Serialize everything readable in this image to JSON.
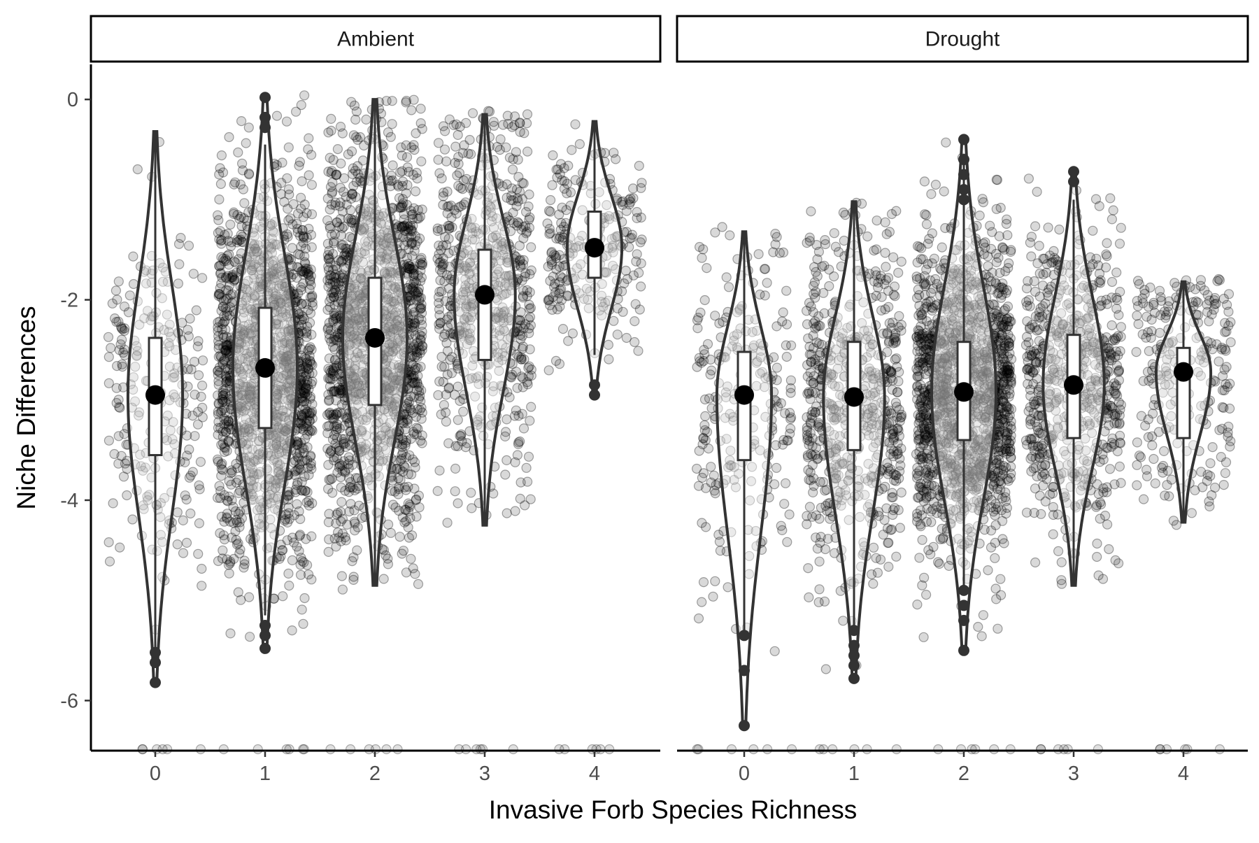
{
  "chart_data": {
    "type": "violin",
    "xlabel": "Invasive Forb Species Richness",
    "ylabel": "Niche Differences",
    "ylim": [
      -6.5,
      0.35
    ],
    "yticks": [
      0,
      -2,
      -4,
      -6
    ],
    "ytick_labels": [
      "0",
      "-2",
      "-4",
      "-6"
    ],
    "categories": [
      "0",
      "1",
      "2",
      "3",
      "4"
    ],
    "grid": false,
    "legend": "none",
    "colors": {
      "violin_outline": "#333333",
      "points": "#000000",
      "mean_marker": "#000000",
      "box_fill": "#ffffff"
    },
    "panels": [
      {
        "facet": "Ambient",
        "groups": [
          {
            "x": "0",
            "density": "low",
            "ymin": -5.82,
            "ymax": -0.32,
            "q1": -3.55,
            "median": -2.95,
            "q3": -2.38,
            "whisker_lo": -5.5,
            "whisker_hi": -0.32,
            "mean": -2.95,
            "outliers": [
              -5.52,
              -5.62,
              -5.82
            ]
          },
          {
            "x": "1",
            "density": "high",
            "ymin": -5.48,
            "ymax": 0.02,
            "q1": -3.28,
            "median": -2.68,
            "q3": -2.08,
            "whisker_lo": -5.15,
            "whisker_hi": -0.45,
            "mean": -2.68,
            "outliers": [
              0.02,
              -0.18,
              -0.28,
              -5.25,
              -5.35,
              -5.48
            ]
          },
          {
            "x": "2",
            "density": "high",
            "ymin": -4.85,
            "ymax": 0.0,
            "q1": -3.05,
            "median": -2.38,
            "q3": -1.78,
            "whisker_lo": -4.85,
            "whisker_hi": 0.0,
            "mean": -2.38,
            "outliers": []
          },
          {
            "x": "3",
            "density": "medium",
            "ymin": -4.25,
            "ymax": -0.15,
            "q1": -2.6,
            "median": -1.95,
            "q3": -1.5,
            "whisker_lo": -4.25,
            "whisker_hi": -0.15,
            "mean": -1.95,
            "outliers": []
          },
          {
            "x": "4",
            "density": "low",
            "ymin": -2.95,
            "ymax": -0.22,
            "q1": -1.78,
            "median": -1.48,
            "q3": -1.12,
            "whisker_lo": -2.55,
            "whisker_hi": -0.22,
            "mean": -1.48,
            "outliers": [
              -2.85,
              -2.95
            ]
          }
        ]
      },
      {
        "facet": "Drought",
        "groups": [
          {
            "x": "0",
            "density": "low",
            "ymin": -6.25,
            "ymax": -1.32,
            "q1": -3.6,
            "median": -2.95,
            "q3": -2.52,
            "whisker_lo": -5.35,
            "whisker_hi": -1.32,
            "mean": -2.95,
            "outliers": [
              -5.35,
              -5.7,
              -6.25
            ]
          },
          {
            "x": "1",
            "density": "medium",
            "ymin": -5.78,
            "ymax": -1.02,
            "q1": -3.5,
            "median": -2.97,
            "q3": -2.42,
            "whisker_lo": -5.3,
            "whisker_hi": -1.02,
            "mean": -2.97,
            "outliers": [
              -5.3,
              -5.45,
              -5.55,
              -5.65,
              -5.78
            ]
          },
          {
            "x": "2",
            "density": "high",
            "ymin": -5.5,
            "ymax": -0.4,
            "q1": -3.4,
            "median": -2.92,
            "q3": -2.42,
            "whisker_lo": -4.85,
            "whisker_hi": -0.55,
            "mean": -2.92,
            "outliers": [
              -0.4,
              -0.6,
              -0.75,
              -0.9,
              -1.0,
              -4.9,
              -5.05,
              -5.2,
              -5.5
            ]
          },
          {
            "x": "3",
            "density": "medium",
            "ymin": -4.85,
            "ymax": -0.72,
            "q1": -3.38,
            "median": -2.85,
            "q3": -2.35,
            "whisker_lo": -4.85,
            "whisker_hi": -1.0,
            "mean": -2.85,
            "outliers": [
              -0.72,
              -0.82
            ]
          },
          {
            "x": "4",
            "density": "low",
            "ymin": -4.22,
            "ymax": -1.82,
            "q1": -3.38,
            "median": -2.72,
            "q3": -2.48,
            "whisker_lo": -4.22,
            "whisker_hi": -1.82,
            "mean": -2.72,
            "outliers": []
          }
        ]
      }
    ]
  }
}
